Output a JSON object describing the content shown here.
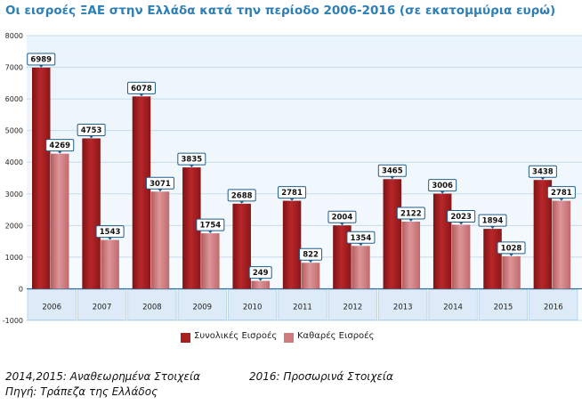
{
  "chart_data": {
    "type": "bar",
    "title": "Οι εισροές ΞΑΕ στην Ελλάδα κατά την περίοδο 2006-2016 (σε εκατομμύρια ευρώ)",
    "categories": [
      "2006",
      "2007",
      "2008",
      "2009",
      "2010",
      "2011",
      "2012",
      "2013",
      "2014",
      "2015",
      "2016"
    ],
    "series": [
      {
        "name": "Συνολικές Εισροές",
        "color": "#a81f22",
        "values": [
          6989,
          4753,
          6078,
          3835,
          2688,
          2781,
          2004,
          3465,
          3006,
          1894,
          3438
        ]
      },
      {
        "name": "Καθαρές Εισροές",
        "color": "#cf7b7e",
        "values": [
          4269,
          1543,
          3071,
          1754,
          249,
          822,
          1354,
          2122,
          2023,
          1028,
          2781
        ]
      }
    ],
    "yticks": [
      -1000,
      0,
      1000,
      2000,
      3000,
      4000,
      5000,
      6000,
      7000,
      8000
    ],
    "ylim": [
      -1000,
      8000
    ],
    "grid": true,
    "legend_position": "bottom"
  },
  "notes": {
    "revised": "2014,2015: Αναθεωρημένα Στοιχεία",
    "provisional": "2016: Προσωρινά Στοιχεία",
    "source": "Πηγή: Τράπεζα της Ελλάδος"
  }
}
